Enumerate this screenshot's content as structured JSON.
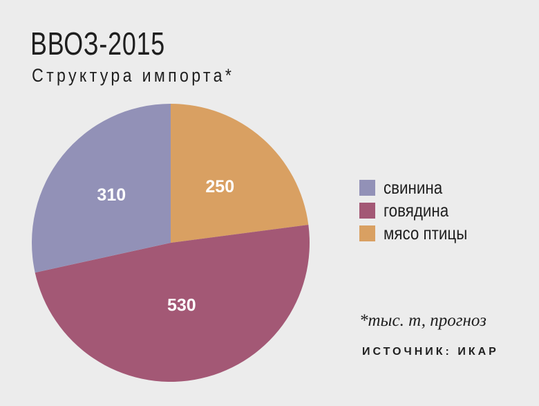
{
  "title": "ВВОЗ-2015",
  "subtitle": "Структура импорта*",
  "note": "*тыс. т, прогноз",
  "source": "ИСТОЧНИК: ИКАР",
  "chart_data": {
    "type": "pie",
    "title": "ВВОЗ-2015",
    "subtitle": "Структура импорта*",
    "unit_note": "*тыс. т, прогноз",
    "legend_position": "right",
    "slices": [
      {
        "label": "мясо птицы",
        "value": 250,
        "color": "#d9a062"
      },
      {
        "label": "говядина",
        "value": 530,
        "color": "#a35875"
      },
      {
        "label": "свинина",
        "value": 310,
        "color": "#9291b7"
      }
    ],
    "legend": [
      {
        "label": "свинина",
        "color": "#9291b7"
      },
      {
        "label": "говядина",
        "color": "#a35875"
      },
      {
        "label": "мясо птицы",
        "color": "#d9a062"
      }
    ],
    "label_color": "#ffffff"
  }
}
